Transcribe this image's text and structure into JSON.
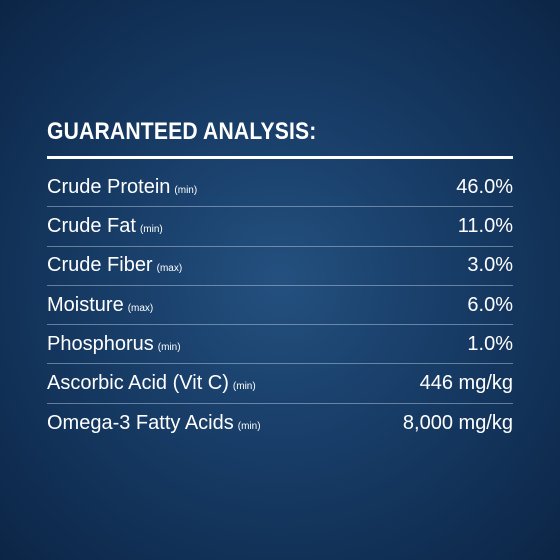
{
  "header": {
    "title": "GUARANTEED ANALYSIS:"
  },
  "table": {
    "rows": [
      [
        "Crude Protein",
        "(min)",
        "46.0%"
      ],
      [
        "Crude Fat",
        "(min)",
        "11.0%"
      ],
      [
        "Crude Fiber",
        "(max)",
        "3.0%"
      ],
      [
        "Moisture",
        "(max)",
        "6.0%"
      ],
      [
        "Phosphorus",
        "(min)",
        "1.0%"
      ],
      [
        "Ascorbic Acid (Vit C)",
        "(min)",
        "446 mg/kg"
      ],
      [
        "Omega-3 Fatty Acids",
        "(min)",
        "8,000 mg/kg"
      ]
    ]
  }
}
